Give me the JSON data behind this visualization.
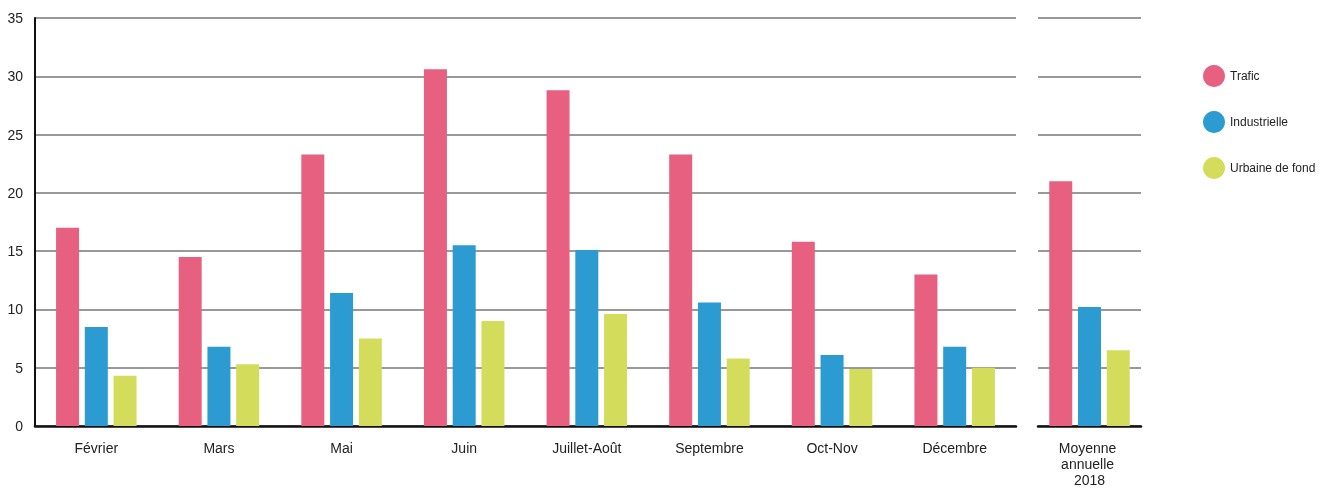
{
  "chart_data": [
    {
      "type": "bar",
      "categories": [
        "Février",
        "Mars",
        "Mai",
        "Juin",
        "Juillet-Août",
        "Septembre",
        "Oct-Nov",
        "Décembre"
      ],
      "series": [
        {
          "color": "#e8607f",
          "values": [
            17,
            14.5,
            23.3,
            30.6,
            28.8,
            23.3,
            15.8,
            13
          ]
        },
        {
          "color": "#2b9bd2",
          "values": [
            8.5,
            6.8,
            11.4,
            15.5,
            15.1,
            10.6,
            6.1,
            6.8
          ]
        },
        {
          "color": "#d4dc5c",
          "values": [
            4.3,
            5.3,
            7.5,
            9,
            9.6,
            5.8,
            4.9,
            5
          ]
        }
      ],
      "ylim": [
        0,
        35
      ],
      "yticks": [
        0,
        5,
        10,
        15,
        20,
        25,
        30,
        35
      ],
      "grid": "y",
      "legend": false
    },
    {
      "type": "bar",
      "categories": [
        "Moyenne annuelle 2018"
      ],
      "series": [
        {
          "name": "Trafic",
          "color": "#e8607f",
          "values": [
            21
          ]
        },
        {
          "name": "Industrielle",
          "color": "#2b9bd2",
          "values": [
            10.2
          ]
        },
        {
          "name": "Urbaine de fond",
          "color": "#d4dc5c",
          "values": [
            6.5
          ]
        }
      ],
      "ylim": [
        0,
        35
      ],
      "yticks": [
        0,
        5,
        10,
        15,
        20,
        25,
        30,
        35
      ],
      "grid": "y",
      "legend": "right",
      "tick_labels": "x"
    }
  ]
}
